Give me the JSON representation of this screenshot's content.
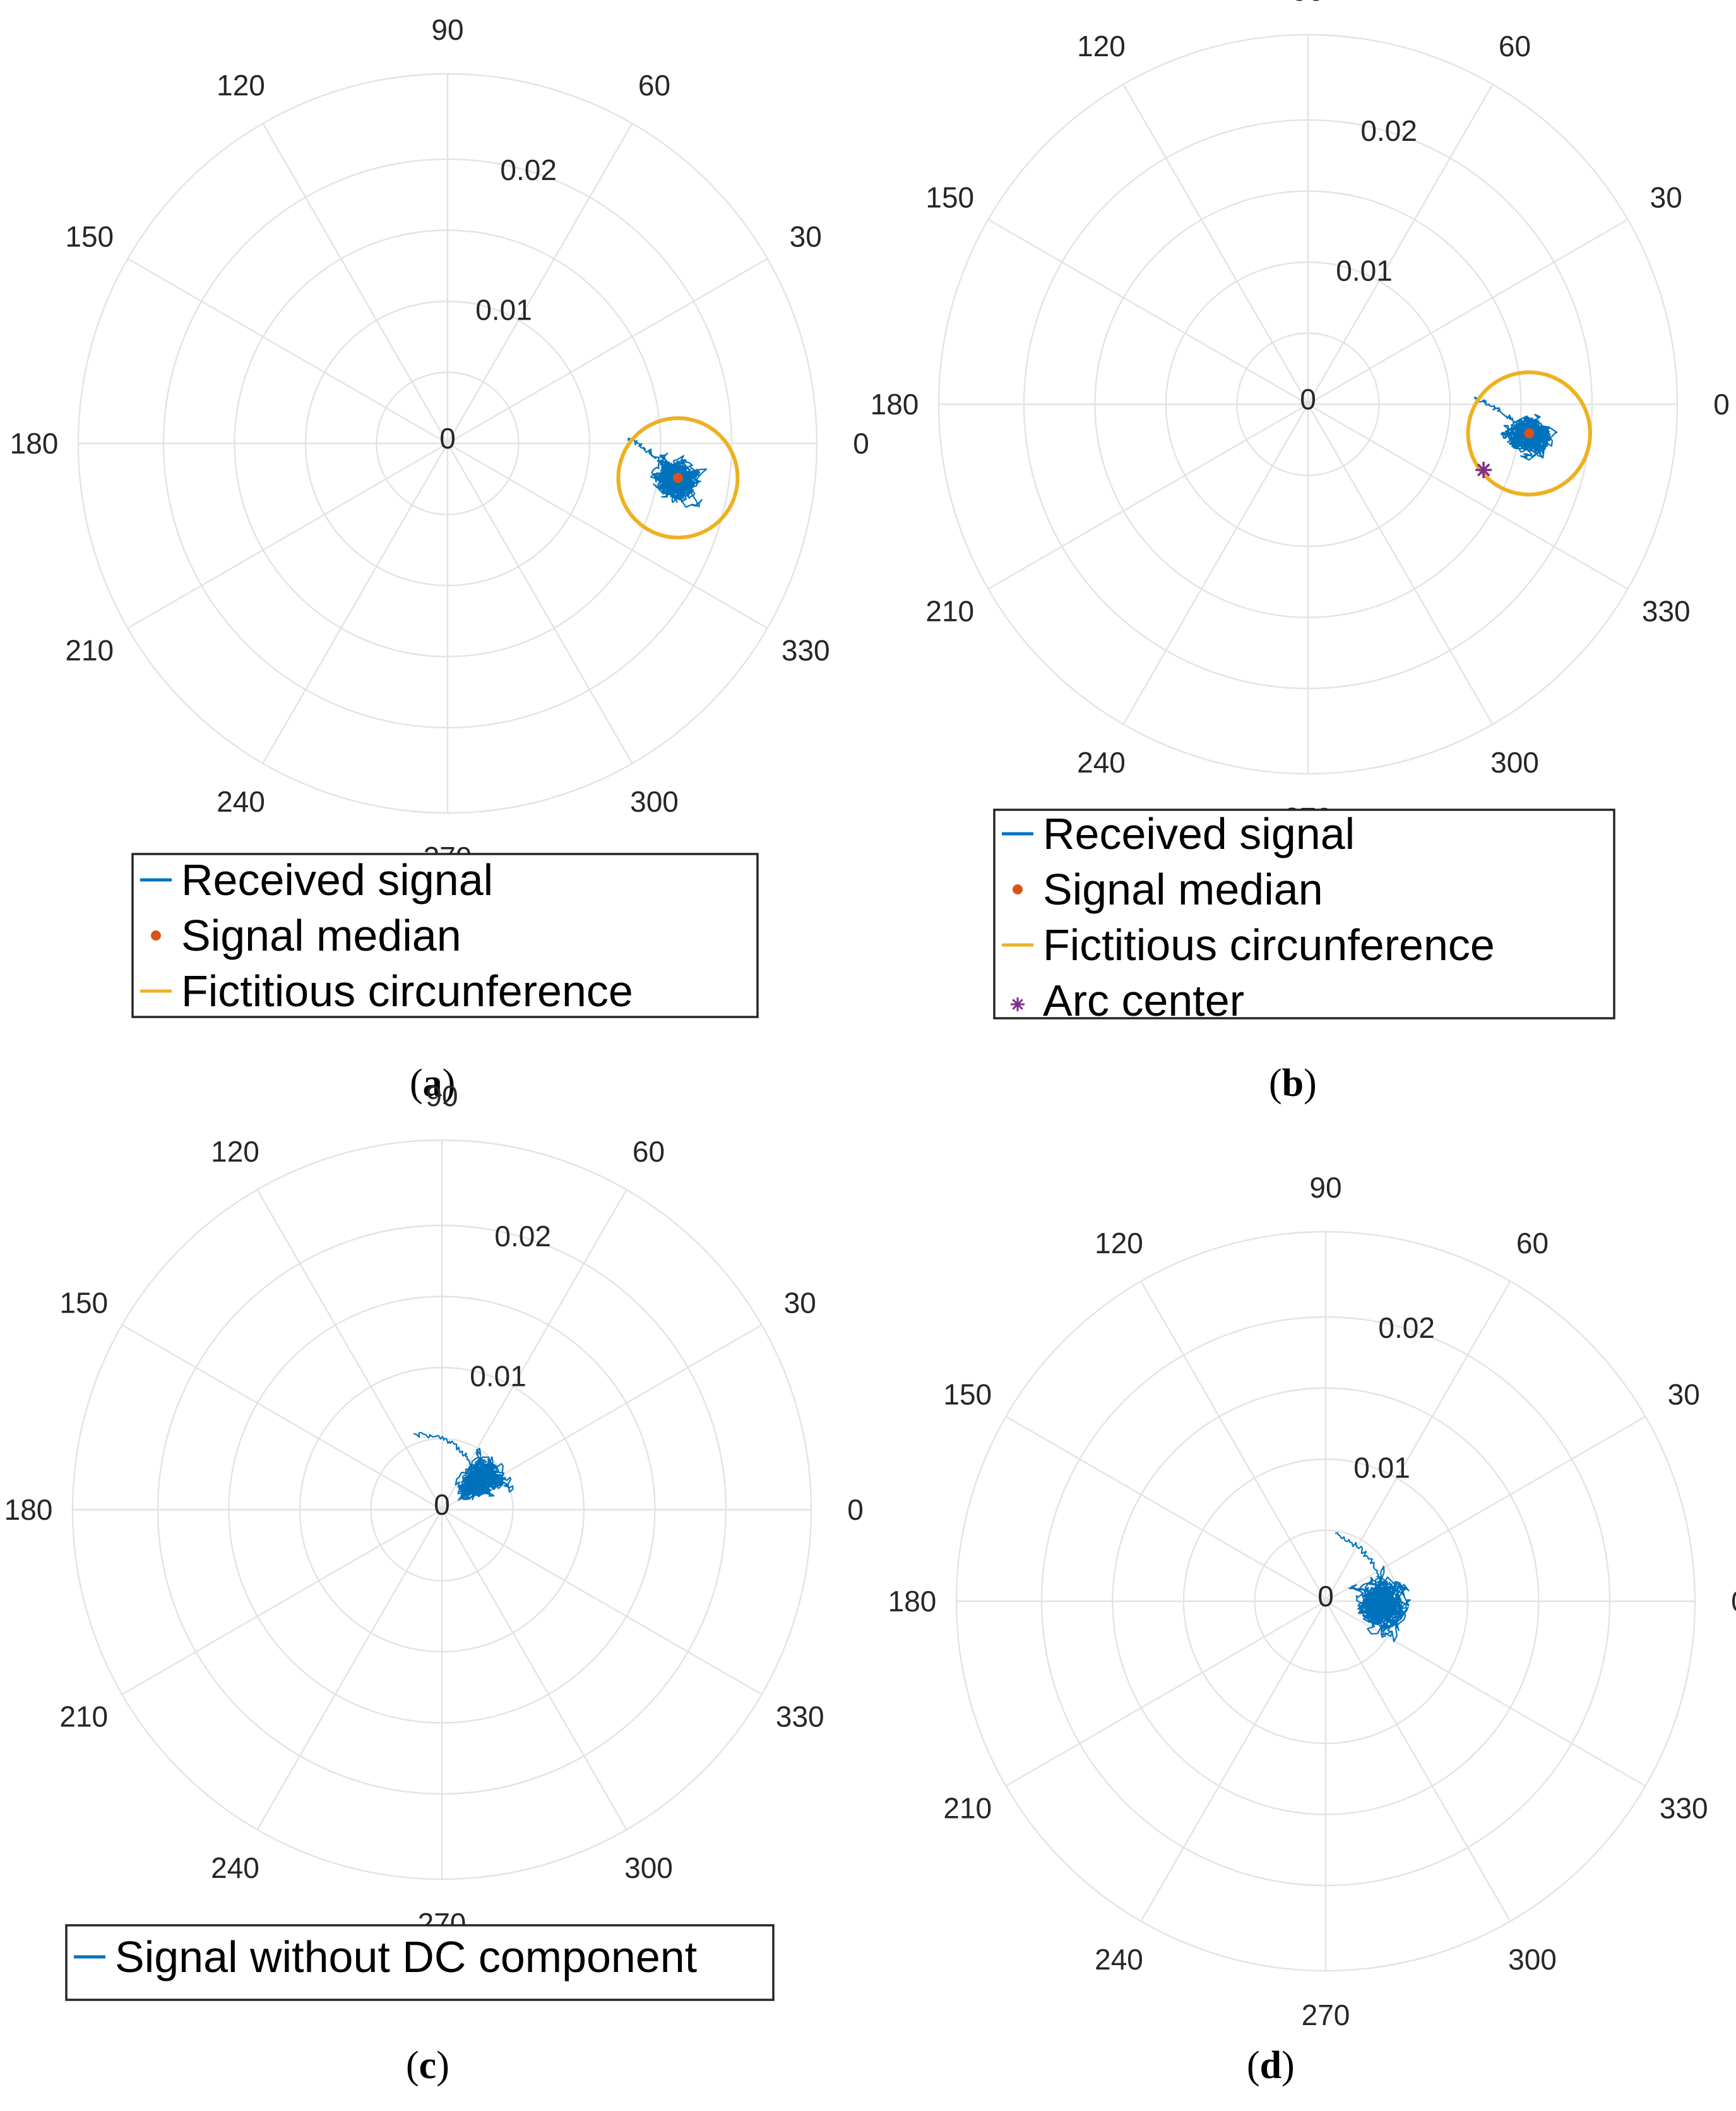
{
  "colors": {
    "signal": "#0072BD",
    "median": "#D95319",
    "circle": "#EDB120",
    "arc_center": "#7E2F8E",
    "grid": "#e3e3e3",
    "text": "#262626"
  },
  "chart_data": [
    {
      "id": "a",
      "type": "polar",
      "caption": "a",
      "theta_ticks": [
        "0",
        "30",
        "60",
        "90",
        "120",
        "150",
        "180",
        "210",
        "240",
        "270",
        "300",
        "330"
      ],
      "r_ticks": [
        "0",
        "0.01",
        "0.02"
      ],
      "rlim": [
        0,
        0.026
      ],
      "grid": true,
      "signal_cloud": {
        "center": {
          "r": 0.0164,
          "theta_deg": -8.5
        },
        "spread_r": 0.0025,
        "spread_theta_deg": 8,
        "tail_to": {
          "r": 0.0126,
          "theta_deg": 2.0
        }
      },
      "median": {
        "r": 0.0164,
        "theta_deg": -8.5
      },
      "circle": {
        "center_r": 0.0164,
        "center_theta_deg": -8.5,
        "radius": 0.0042
      },
      "legend": [
        "Received signal",
        "Signal median",
        "Fictitious circunference"
      ]
    },
    {
      "id": "b",
      "type": "polar",
      "caption": "b",
      "theta_ticks": [
        "0",
        "30",
        "60",
        "90",
        "120",
        "150",
        "180",
        "210",
        "240",
        "270",
        "300",
        "330"
      ],
      "r_ticks": [
        "0",
        "0.01",
        "0.02"
      ],
      "rlim": [
        0,
        0.026
      ],
      "grid": true,
      "signal_cloud": {
        "center": {
          "r": 0.0157,
          "theta_deg": -7.5
        },
        "spread_r": 0.0023,
        "spread_theta_deg": 8,
        "tail_to": {
          "r": 0.0118,
          "theta_deg": 2.0
        }
      },
      "median": {
        "r": 0.0157,
        "theta_deg": -7.5
      },
      "circle": {
        "center_r": 0.0157,
        "center_theta_deg": -7.5,
        "radius": 0.0043
      },
      "arc_center": {
        "r": 0.0132,
        "theta_deg": -20.5
      },
      "legend": [
        "Received signal",
        "Signal median",
        "Fictitious circunference",
        "Arc center"
      ]
    },
    {
      "id": "c",
      "type": "polar",
      "caption": "c",
      "theta_ticks": [
        "0",
        "30",
        "60",
        "90",
        "120",
        "150",
        "180",
        "210",
        "240",
        "270",
        "300",
        "330"
      ],
      "r_ticks": [
        "0",
        "0.01",
        "0.02"
      ],
      "rlim": [
        0,
        0.026
      ],
      "grid": true,
      "signal_cloud": {
        "center": {
          "r": 0.0033,
          "theta_deg": 38
        },
        "spread_r": 0.0028,
        "spread_theta_deg": 30,
        "tail_to": {
          "r": 0.0056,
          "theta_deg": 110
        }
      },
      "legend": [
        "Signal without DC component"
      ]
    },
    {
      "id": "d",
      "type": "polar",
      "caption": "d",
      "theta_ticks": [
        "0",
        "30",
        "60",
        "90",
        "120",
        "150",
        "180",
        "210",
        "240",
        "270",
        "300",
        "330"
      ],
      "r_ticks": [
        "0",
        "0.01",
        "0.02"
      ],
      "rlim": [
        0,
        0.026
      ],
      "grid": true,
      "signal_cloud": {
        "center": {
          "r": 0.0037,
          "theta_deg": -3
        },
        "spread_r": 0.0028,
        "spread_theta_deg": 40,
        "tail_to": {
          "r": 0.0047,
          "theta_deg": 82
        }
      },
      "legend": []
    }
  ]
}
